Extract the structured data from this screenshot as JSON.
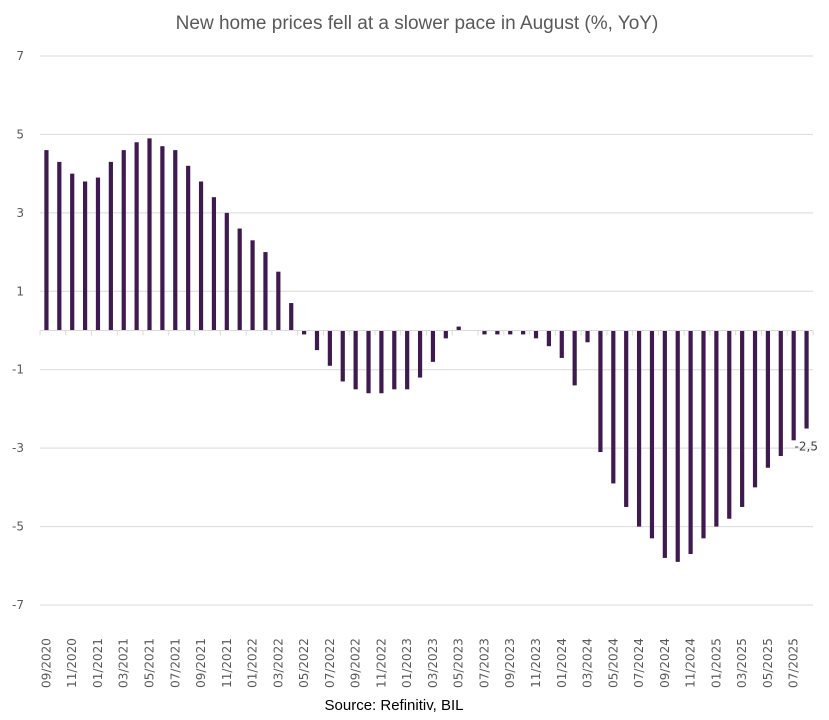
{
  "chart_data": {
    "type": "bar",
    "title": "New home prices fell at a slower pace in August (%, YoY)",
    "xlabel": "",
    "ylabel": "",
    "ylim": [
      -7,
      7
    ],
    "yticks": [
      7,
      5,
      3,
      1,
      -1,
      -3,
      -5,
      -7
    ],
    "ytick_labels": [
      "7",
      "5",
      "3",
      "1",
      "-1",
      "-3",
      "-5",
      "-7"
    ],
    "grid": true,
    "legend": "none",
    "categories": [
      "09/2020",
      "10/2020",
      "11/2020",
      "12/2020",
      "01/2021",
      "02/2021",
      "03/2021",
      "04/2021",
      "05/2021",
      "06/2021",
      "07/2021",
      "08/2021",
      "09/2021",
      "10/2021",
      "11/2021",
      "12/2021",
      "01/2022",
      "02/2022",
      "03/2022",
      "04/2022",
      "05/2022",
      "06/2022",
      "07/2022",
      "08/2022",
      "09/2022",
      "10/2022",
      "11/2022",
      "12/2022",
      "01/2023",
      "02/2023",
      "03/2023",
      "04/2023",
      "05/2023",
      "06/2023",
      "07/2023",
      "08/2023",
      "09/2023",
      "10/2023",
      "11/2023",
      "12/2023",
      "01/2024",
      "02/2024",
      "03/2024",
      "04/2024",
      "05/2024",
      "06/2024",
      "07/2024",
      "08/2024",
      "09/2024",
      "10/2024",
      "11/2024",
      "12/2024",
      "01/2025",
      "02/2025",
      "03/2025",
      "04/2025",
      "05/2025",
      "06/2025",
      "07/2025",
      "08/2025"
    ],
    "visible_tick_labels": [
      "09/2020",
      "11/2020",
      "01/2021",
      "03/2021",
      "05/2021",
      "07/2021",
      "09/2021",
      "11/2021",
      "01/2022",
      "03/2022",
      "05/2022",
      "07/2022",
      "09/2022",
      "11/2022",
      "01/2023",
      "03/2023",
      "05/2023",
      "07/2023",
      "09/2023",
      "11/2023",
      "01/2024",
      "03/2024",
      "05/2024",
      "07/2024",
      "09/2024",
      "11/2024",
      "01/2025",
      "03/2025",
      "05/2025",
      "07/2025"
    ],
    "series": [
      {
        "name": "New home prices (%, YoY)",
        "color": "#3f1a4f",
        "values": [
          4.6,
          4.3,
          4.0,
          3.8,
          3.9,
          4.3,
          4.6,
          4.8,
          4.9,
          4.7,
          4.6,
          4.2,
          3.8,
          3.4,
          3.0,
          2.6,
          2.3,
          2.0,
          1.5,
          0.7,
          -0.1,
          -0.5,
          -0.9,
          -1.3,
          -1.5,
          -1.6,
          -1.6,
          -1.5,
          -1.5,
          -1.2,
          -0.8,
          -0.2,
          0.1,
          0.0,
          -0.1,
          -0.1,
          -0.1,
          -0.1,
          -0.2,
          -0.4,
          -0.7,
          -1.4,
          -0.3,
          -3.1,
          -3.9,
          -4.5,
          -5.0,
          -5.3,
          -5.8,
          -5.9,
          -5.7,
          -5.3,
          -5.0,
          -4.8,
          -4.5,
          -4.0,
          -3.5,
          -3.2,
          -2.8,
          -2.5
        ]
      }
    ],
    "annotations": [
      {
        "category": "08/2025",
        "text": "-2,5"
      }
    ],
    "source": "Source: Refinitiv, BIL"
  }
}
